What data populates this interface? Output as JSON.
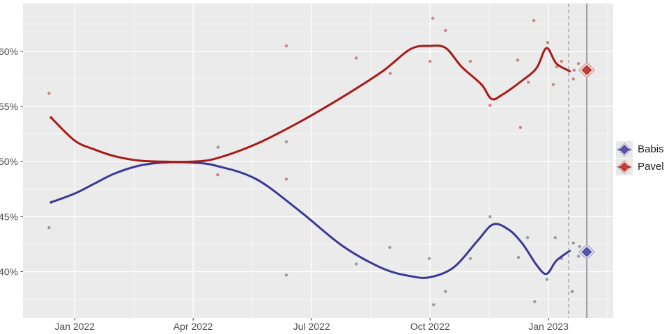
{
  "legend": {
    "items": [
      {
        "id": "babis",
        "label": "Babis"
      },
      {
        "id": "pavel",
        "label": "Pavel"
      }
    ]
  },
  "chart_data": {
    "type": "line",
    "title": "",
    "subtitle": "",
    "x_unit": "months since Jan 2022",
    "y_unit": "percent",
    "xlim": [
      -1.31,
      13.64
    ],
    "ylim": [
      35.8,
      64.35
    ],
    "grid": true,
    "legend_position": "right",
    "panel_bg": "#ebebeb",
    "grid_color": "#ffffff",
    "axis_text_color": "#4d4d4d",
    "tick_color": "#333333",
    "x_ticks": [
      {
        "pos": 0,
        "label": "Jan 2022"
      },
      {
        "pos": 3,
        "label": "Apr 2022"
      },
      {
        "pos": 6,
        "label": "Jul 2022"
      },
      {
        "pos": 9,
        "label": "Oct 2022"
      },
      {
        "pos": 12,
        "label": "Jan 2023"
      }
    ],
    "y_ticks": [
      {
        "pos": 40,
        "label": "40%"
      },
      {
        "pos": 45,
        "label": "45%"
      },
      {
        "pos": 50,
        "label": "50%"
      },
      {
        "pos": 55,
        "label": "55%"
      },
      {
        "pos": 60,
        "label": "60%"
      }
    ],
    "x_minor": [
      1.5,
      4.5,
      7.5,
      10.5,
      13.5
    ],
    "y_minor": [
      37.5,
      42.5,
      47.5,
      52.5,
      57.5,
      62.5
    ],
    "vlines": [
      {
        "pos": 12.51,
        "style": "dashed",
        "color": "#9a9a9a"
      },
      {
        "pos": 12.97,
        "style": "solid",
        "color": "#8a8a8a"
      }
    ],
    "series": [
      {
        "name": "Babis",
        "line_color": "#3a3897",
        "point_color": "#8b8b91",
        "key_fill": "#5755ad",
        "halo_fill": "#e2e2ee",
        "halo_stroke": "#a7a6cd",
        "trend": [
          [
            -0.6,
            46.3
          ],
          [
            0,
            47.1
          ],
          [
            0.5,
            48.0
          ],
          [
            1,
            48.9
          ],
          [
            1.6,
            49.6
          ],
          [
            2.2,
            49.9
          ],
          [
            3,
            49.9
          ],
          [
            3.6,
            49.6
          ],
          [
            4.6,
            48.4
          ],
          [
            5.7,
            45.5
          ],
          [
            6.8,
            42.3
          ],
          [
            7.8,
            40.3
          ],
          [
            8.5,
            39.6
          ],
          [
            9,
            39.5
          ],
          [
            9.6,
            40.4
          ],
          [
            10.2,
            42.8
          ],
          [
            10.6,
            44.3
          ],
          [
            11,
            43.8
          ],
          [
            11.35,
            42.5
          ],
          [
            11.7,
            40.6
          ],
          [
            11.95,
            39.8
          ],
          [
            12.2,
            41.0
          ],
          [
            12.54,
            41.9
          ]
        ],
        "points": [
          [
            -0.65,
            44.0
          ],
          [
            -0.6,
            46.3
          ],
          [
            3.63,
            51.3
          ],
          [
            5.36,
            51.8
          ],
          [
            5.36,
            39.7
          ],
          [
            7.13,
            40.7
          ],
          [
            7.98,
            42.2
          ],
          [
            8.98,
            41.2
          ],
          [
            9.09,
            37.0
          ],
          [
            9.39,
            38.2
          ],
          [
            10.02,
            41.2
          ],
          [
            10.52,
            45.0
          ],
          [
            11.24,
            41.3
          ],
          [
            11.47,
            43.1
          ],
          [
            11.65,
            37.3
          ],
          [
            11.96,
            39.3
          ],
          [
            12.17,
            43.1
          ],
          [
            12.33,
            41.2
          ],
          [
            12.6,
            38.2
          ],
          [
            12.63,
            42.6
          ],
          [
            12.76,
            41.4
          ],
          [
            12.79,
            42.3
          ]
        ],
        "final": [
          12.97,
          41.8
        ]
      },
      {
        "name": "Pavel",
        "line_color": "#a81a17",
        "point_color": "#c4716b",
        "key_fill": "#c2403a",
        "halo_fill": "#f0dedb",
        "halo_stroke": "#d09a93",
        "trend": [
          [
            -0.6,
            54.0
          ],
          [
            0,
            51.9
          ],
          [
            0.5,
            51.1
          ],
          [
            1,
            50.5
          ],
          [
            1.6,
            50.1
          ],
          [
            2.2,
            50.0
          ],
          [
            3,
            50.0
          ],
          [
            3.6,
            50.3
          ],
          [
            4.6,
            51.6
          ],
          [
            5.7,
            53.6
          ],
          [
            6.8,
            55.9
          ],
          [
            7.8,
            58.2
          ],
          [
            8.5,
            60.2
          ],
          [
            9,
            60.5
          ],
          [
            9.4,
            60.3
          ],
          [
            9.8,
            58.6
          ],
          [
            10.3,
            57.0
          ],
          [
            10.55,
            55.7
          ],
          [
            10.8,
            56.0
          ],
          [
            11.35,
            57.4
          ],
          [
            11.7,
            58.5
          ],
          [
            11.95,
            60.3
          ],
          [
            12.2,
            58.9
          ],
          [
            12.54,
            58.2
          ]
        ],
        "points": [
          [
            -0.65,
            56.2
          ],
          [
            -0.6,
            54.0
          ],
          [
            3.62,
            48.8
          ],
          [
            5.36,
            48.4
          ],
          [
            5.36,
            60.5
          ],
          [
            7.13,
            59.4
          ],
          [
            7.99,
            58.0
          ],
          [
            9.0,
            59.1
          ],
          [
            9.07,
            63.0
          ],
          [
            9.39,
            61.9
          ],
          [
            10.02,
            59.1
          ],
          [
            10.52,
            55.1
          ],
          [
            11.22,
            59.2
          ],
          [
            11.29,
            53.1
          ],
          [
            11.49,
            57.2
          ],
          [
            11.63,
            62.8
          ],
          [
            11.98,
            60.8
          ],
          [
            12.12,
            57.0
          ],
          [
            12.21,
            58.6
          ],
          [
            12.33,
            59.1
          ],
          [
            12.63,
            57.5
          ],
          [
            12.65,
            58.3
          ],
          [
            12.76,
            58.9
          ]
        ],
        "final": [
          12.97,
          58.3
        ]
      }
    ]
  }
}
